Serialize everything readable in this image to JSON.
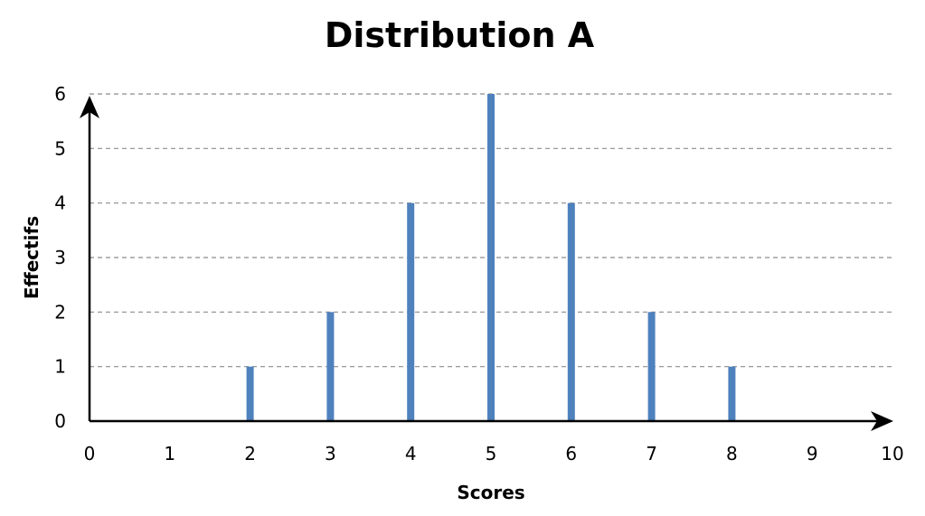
{
  "chart_data": {
    "type": "bar",
    "title": "Distribution A",
    "xlabel": "Scores",
    "ylabel": "Effectifs",
    "xlim": [
      0,
      10
    ],
    "ylim": [
      0,
      6
    ],
    "x_ticks": [
      "0",
      "1",
      "2",
      "3",
      "4",
      "5",
      "6",
      "7",
      "8",
      "9",
      "10"
    ],
    "y_ticks": [
      "0",
      "1",
      "2",
      "3",
      "4",
      "5",
      "6"
    ],
    "x": [
      2,
      3,
      4,
      5,
      6,
      7,
      8
    ],
    "values": [
      1,
      2,
      4,
      6,
      4,
      2,
      1
    ],
    "grid": true,
    "bar_color": "#4f81bd"
  }
}
